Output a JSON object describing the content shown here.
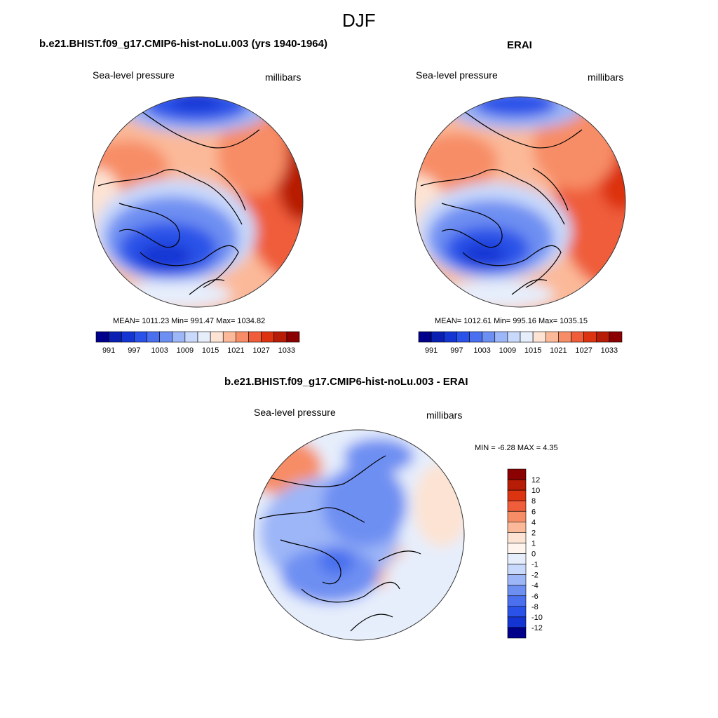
{
  "figure": {
    "season": "DJF",
    "variable": "Sea-level pressure",
    "units": "millibars"
  },
  "chart_data": [
    {
      "type": "heatmap",
      "projection": "north-polar-stereographic",
      "title": "b.e21.BHIST.f09_g17.CMIP6-hist-noLu.003 (yrs 1940-1964)",
      "left_label": "Sea-level pressure",
      "right_label": "millibars",
      "stats_text": "MEAN= 1011.23  Min= 991.47  Max= 1034.82",
      "mean": 1011.23,
      "min": 991.47,
      "max": 1034.82,
      "colorbar": {
        "orientation": "horizontal",
        "levels": [
          991,
          994,
          997,
          1000,
          1003,
          1006,
          1009,
          1012,
          1015,
          1018,
          1021,
          1024,
          1027,
          1030,
          1033
        ],
        "tick_labels": [
          "991",
          "997",
          "1003",
          "1009",
          "1015",
          "1021",
          "1027",
          "1033"
        ],
        "colors": [
          "#00008b",
          "#0a1fb2",
          "#1535d3",
          "#2a52e8",
          "#4a6fef",
          "#6e8ff2",
          "#9db6f7",
          "#c9d9fb",
          "#e6eefc",
          "#fde3d3",
          "#fbb999",
          "#f78d66",
          "#ef5d3a",
          "#dc3310",
          "#b71c06",
          "#8b0000"
        ]
      }
    },
    {
      "type": "heatmap",
      "projection": "north-polar-stereographic",
      "title": "ERAI",
      "left_label": "Sea-level pressure",
      "right_label": "millibars",
      "stats_text": "MEAN= 1012.61  Min= 995.16  Max= 1035.15",
      "mean": 1012.61,
      "min": 995.16,
      "max": 1035.15,
      "colorbar": {
        "orientation": "horizontal",
        "levels": [
          991,
          994,
          997,
          1000,
          1003,
          1006,
          1009,
          1012,
          1015,
          1018,
          1021,
          1024,
          1027,
          1030,
          1033
        ],
        "tick_labels": [
          "991",
          "997",
          "1003",
          "1009",
          "1015",
          "1021",
          "1027",
          "1033"
        ],
        "colors": [
          "#00008b",
          "#0a1fb2",
          "#1535d3",
          "#2a52e8",
          "#4a6fef",
          "#6e8ff2",
          "#9db6f7",
          "#c9d9fb",
          "#e6eefc",
          "#fde3d3",
          "#fbb999",
          "#f78d66",
          "#ef5d3a",
          "#dc3310",
          "#b71c06",
          "#8b0000"
        ]
      }
    },
    {
      "type": "heatmap",
      "projection": "north-polar-stereographic",
      "title": "b.e21.BHIST.f09_g17.CMIP6-hist-noLu.003 - ERAI",
      "left_label": "Sea-level pressure",
      "right_label": "millibars",
      "stats_text": "MIN =  -6.28 MAX =   4.35",
      "min": -6.28,
      "max": 4.35,
      "colorbar": {
        "orientation": "vertical",
        "tick_labels": [
          "12",
          "10",
          "8",
          "6",
          "4",
          "2",
          "1",
          "0",
          "-1",
          "-2",
          "-4",
          "-6",
          "-8",
          "-10",
          "-12"
        ],
        "colors": [
          "#8b0000",
          "#b71c06",
          "#dc3310",
          "#ef5d3a",
          "#f78d66",
          "#fbb999",
          "#fde3d3",
          "#fff5ee",
          "#e6eefc",
          "#c9d9fb",
          "#9db6f7",
          "#6e8ff2",
          "#4a6fef",
          "#2a52e8",
          "#1535d3",
          "#00008b"
        ]
      }
    }
  ]
}
